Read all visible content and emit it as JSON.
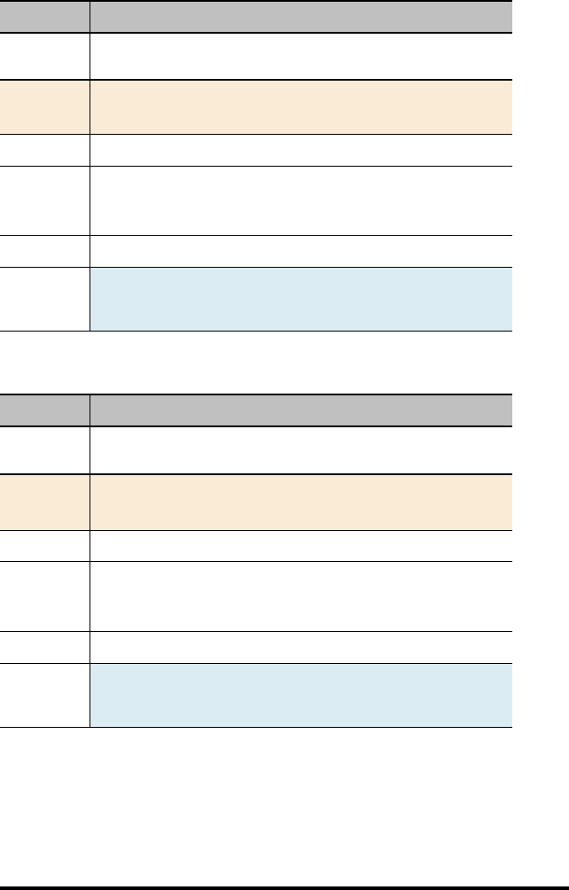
{
  "colors": {
    "header_bg": "#c0c0c0",
    "warning_row_bg": "#faebd7",
    "info_cell_bg": "#dbedf3"
  },
  "tables": [
    {
      "header": [
        "",
        ""
      ],
      "rows": [
        {
          "cells": [
            "",
            ""
          ],
          "style": "plain",
          "height": 53
        },
        {
          "cells": [
            "",
            ""
          ],
          "style": "warning",
          "height": 61
        },
        {
          "cells": [
            "",
            ""
          ],
          "style": "plain",
          "height": 36
        },
        {
          "cells": [
            "",
            ""
          ],
          "style": "plain",
          "height": 78
        },
        {
          "cells": [
            "",
            ""
          ],
          "style": "plain",
          "height": 36
        },
        {
          "cells": [
            "",
            ""
          ],
          "style": "info",
          "height": 72
        }
      ]
    },
    {
      "header": [
        "",
        ""
      ],
      "rows": [
        {
          "cells": [
            "",
            ""
          ],
          "style": "plain",
          "height": 54
        },
        {
          "cells": [
            "",
            ""
          ],
          "style": "warning",
          "height": 63
        },
        {
          "cells": [
            "",
            ""
          ],
          "style": "plain",
          "height": 35
        },
        {
          "cells": [
            "",
            ""
          ],
          "style": "plain",
          "height": 79
        },
        {
          "cells": [
            "",
            ""
          ],
          "style": "plain",
          "height": 36
        },
        {
          "cells": [
            "",
            ""
          ],
          "style": "info",
          "height": 72
        }
      ]
    }
  ]
}
